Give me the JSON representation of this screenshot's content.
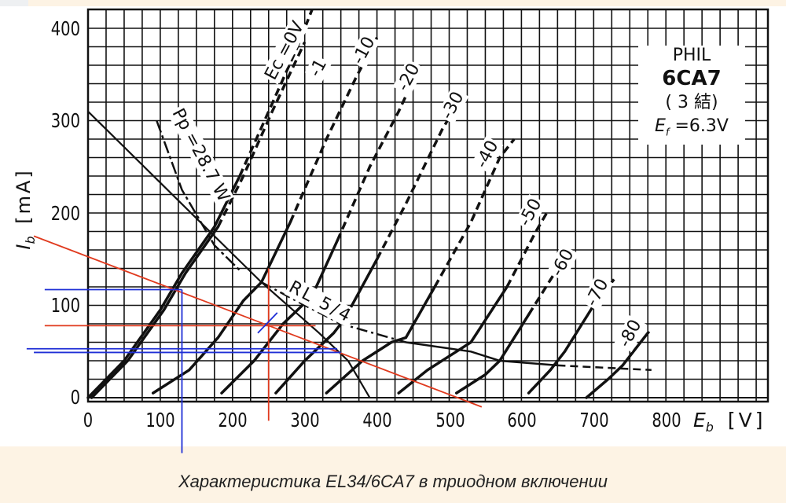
{
  "caption": "Характеристика EL34/6CA7 в триодном включении",
  "chart_data": {
    "type": "line",
    "title": "PHIL 6CA7 (3結) Ef = 6.3V — triode-connected plate characteristics",
    "xlabel": "E_b [V]",
    "ylabel": "I_b [mA]",
    "xlim": [
      0,
      940
    ],
    "ylim": [
      0,
      420
    ],
    "x_ticks": [
      0,
      100,
      200,
      300,
      400,
      500,
      600,
      700,
      800
    ],
    "y_ticks": [
      0,
      100,
      200,
      300,
      400
    ],
    "grid": true,
    "grid_step": {
      "x": 25,
      "y": 20
    },
    "annotations": {
      "maker": "PHIL",
      "tube": "6CA7",
      "connection": "( 3 結)",
      "filament": "E_f =6.3V",
      "grid_bias_label": "Ec =0V",
      "power_label": "Pp =28.7 W",
      "load_label": "RL 5/4"
    },
    "series": [
      {
        "name": "Ec=0V",
        "label": "Ec =0V",
        "points": [
          [
            0,
            0
          ],
          [
            50,
            40
          ],
          [
            100,
            95
          ],
          [
            130,
            135
          ],
          [
            175,
            185
          ],
          [
            210,
            240
          ],
          [
            250,
            310
          ],
          [
            290,
            380
          ],
          [
            310,
            420
          ]
        ]
      },
      {
        "name": "Ec=-1V",
        "label": "-1",
        "points": [
          [
            5,
            0
          ],
          [
            55,
            40
          ],
          [
            105,
            95
          ],
          [
            135,
            135
          ],
          [
            180,
            185
          ],
          [
            215,
            240
          ],
          [
            255,
            310
          ],
          [
            300,
            385
          ]
        ]
      },
      {
        "name": "Ec=-10V",
        "label": "-10",
        "points": [
          [
            90,
            5
          ],
          [
            140,
            30
          ],
          [
            180,
            65
          ],
          [
            215,
            105
          ],
          [
            240,
            125
          ],
          [
            280,
            190
          ],
          [
            330,
            280
          ],
          [
            370,
            345
          ],
          [
            400,
            390
          ]
        ]
      },
      {
        "name": "Ec=-20V",
        "label": "-20",
        "points": [
          [
            185,
            5
          ],
          [
            230,
            40
          ],
          [
            270,
            80
          ],
          [
            310,
            110
          ],
          [
            345,
            170
          ],
          [
            390,
            250
          ],
          [
            430,
            310
          ],
          [
            460,
            360
          ]
        ]
      },
      {
        "name": "Ec=-30V",
        "label": "-30",
        "points": [
          [
            260,
            5
          ],
          [
            300,
            40
          ],
          [
            340,
            70
          ],
          [
            355,
            85
          ],
          [
            400,
            150
          ],
          [
            440,
            210
          ],
          [
            490,
            290
          ],
          [
            520,
            330
          ]
        ]
      },
      {
        "name": "Ec=-40V",
        "label": "-40",
        "points": [
          [
            330,
            5
          ],
          [
            380,
            40
          ],
          [
            420,
            60
          ],
          [
            440,
            65
          ],
          [
            480,
            120
          ],
          [
            530,
            190
          ],
          [
            570,
            260
          ],
          [
            590,
            280
          ]
        ]
      },
      {
        "name": "Ec=-50V",
        "label": "-50",
        "points": [
          [
            430,
            5
          ],
          [
            470,
            30
          ],
          [
            510,
            50
          ],
          [
            530,
            60
          ],
          [
            580,
            120
          ],
          [
            620,
            180
          ],
          [
            635,
            200
          ]
        ]
      },
      {
        "name": "Ec=-60V",
        "label": "-60",
        "points": [
          [
            510,
            5
          ],
          [
            550,
            25
          ],
          [
            570,
            40
          ],
          [
            610,
            90
          ],
          [
            650,
            140
          ],
          [
            660,
            150
          ]
        ]
      },
      {
        "name": "Ec=-70V",
        "label": "-70",
        "points": [
          [
            610,
            5
          ],
          [
            640,
            30
          ],
          [
            660,
            50
          ],
          [
            700,
            100
          ],
          [
            730,
            130
          ]
        ]
      },
      {
        "name": "Ec=-80V",
        "label": "-80",
        "points": [
          [
            690,
            0
          ],
          [
            720,
            20
          ],
          [
            740,
            35
          ],
          [
            770,
            65
          ],
          [
            780,
            75
          ]
        ]
      },
      {
        "name": "Pp=28.7W",
        "label": "Pp =28.7 W",
        "style": "solid-dashed",
        "points": [
          [
            95,
            300
          ],
          [
            130,
            225
          ],
          [
            175,
            165
          ],
          [
            210,
            138
          ]
        ]
      },
      {
        "name": "Load line RL",
        "style": "solid",
        "points": [
          [
            0,
            310
          ],
          [
            175,
            175
          ],
          [
            240,
            125
          ],
          [
            320,
            70
          ],
          [
            360,
            40
          ],
          [
            390,
            0
          ]
        ]
      },
      {
        "name": "RL 5/4 locus",
        "label": "RL 5/4",
        "style": "dash-dot",
        "points": [
          [
            240,
            125
          ],
          [
            300,
            100
          ],
          [
            350,
            80
          ],
          [
            440,
            60
          ],
          [
            530,
            50
          ],
          [
            570,
            40
          ],
          [
            650,
            35
          ],
          [
            780,
            30
          ]
        ]
      }
    ],
    "overlay_lines": {
      "red": [
        {
          "name": "load line (red)",
          "from": [
            -75,
            175
          ],
          "to": [
            545,
            -10
          ]
        },
        {
          "name": "Ia quiescent horizontal",
          "y": 78,
          "x_from": -60,
          "x_to": 315
        },
        {
          "name": "Ea quiescent vertical",
          "x": 250,
          "y_from": -25,
          "y_to": 140
        }
      ],
      "blue": [
        {
          "name": "Ia max horizontal",
          "y": 117,
          "x_from": -60,
          "x_to": 130
        },
        {
          "name": "Ea min vertical",
          "x": 130,
          "y_from": -60,
          "y_to": 117
        },
        {
          "name": "Ia min horizontal 1",
          "y": 53,
          "x_from": -85,
          "x_to": 345
        },
        {
          "name": "Ia min horizontal 2",
          "y": 49,
          "x_from": -75,
          "x_to": 350
        },
        {
          "name": "bias tick",
          "from": [
            235,
            70
          ],
          "to": [
            262,
            92
          ]
        }
      ]
    },
    "colors": {
      "curves": "#111111",
      "red": "#e03a1e",
      "blue": "#1f2fd6",
      "background": "#fdf3e4"
    }
  },
  "axes": {
    "y_ticks": [
      "400",
      "300",
      "200",
      "100",
      "0"
    ],
    "x_ticks": [
      "0",
      "100",
      "200",
      "300",
      "400",
      "500",
      "600",
      "700",
      "800"
    ],
    "x_unit": "[V]",
    "x_symbol": "E",
    "x_sub": "b",
    "y_symbol": "I",
    "y_sub": "b",
    "y_unit": "[mA]"
  },
  "labels": {
    "maker": "PHIL",
    "tube": "6CA7",
    "connection": "( 3 結)",
    "filament": "=6.3V",
    "filament_sym": "E",
    "filament_sub": "f",
    "ec0": "Ec =0V",
    "ec": [
      "-1",
      "-10",
      "-20",
      "-30",
      "-40",
      "-50",
      "-60",
      "-70",
      "-80"
    ],
    "pp": "Pp =28.7 W",
    "rl": "RL 5/4"
  }
}
